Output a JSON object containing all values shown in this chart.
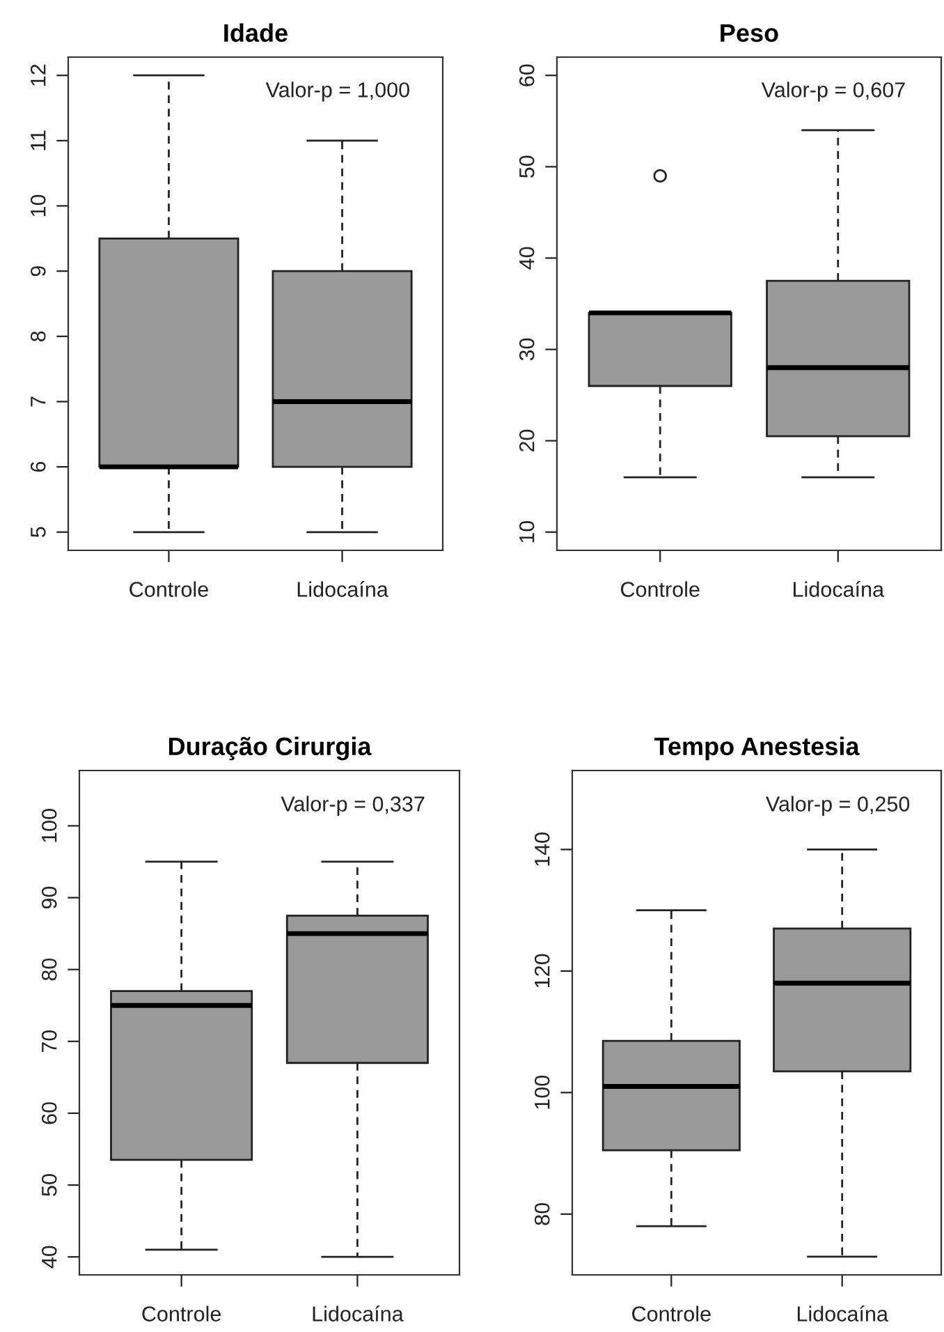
{
  "chart_data": [
    {
      "type": "box",
      "title": "Idade",
      "categories": [
        "Controle",
        "Lidocaína"
      ],
      "color": "#999999",
      "ylim": [
        4.72,
        12.28
      ],
      "yticks": [
        5,
        6,
        7,
        8,
        9,
        10,
        11,
        12
      ],
      "annotations": [
        "Valor-p = 1,000"
      ],
      "boxes": [
        {
          "low": 5,
          "q1": 6,
          "median": 6,
          "q3": 9.5,
          "high": 12
        },
        {
          "low": 5,
          "q1": 6,
          "median": 7,
          "q3": 9,
          "high": 11
        }
      ]
    },
    {
      "type": "box",
      "title": "Peso",
      "categories": [
        "Controle",
        "Lidocaína"
      ],
      "color": "#999999",
      "ylim": [
        8,
        62
      ],
      "yticks": [
        10,
        20,
        30,
        40,
        50,
        60
      ],
      "annotations": [
        "Valor-p = 0,607"
      ],
      "boxes": [
        {
          "low": 16,
          "q1": 26,
          "median": 34,
          "q3": 34,
          "high": 34,
          "outliers": [
            49
          ]
        },
        {
          "low": 16,
          "q1": 20.5,
          "median": 28,
          "q3": 37.5,
          "high": 54
        }
      ]
    },
    {
      "type": "box",
      "title": "Duração Cirurgia",
      "categories": [
        "Controle",
        "Lidocaína"
      ],
      "color": "#999999",
      "ylim": [
        37.5,
        107.7
      ],
      "yticks": [
        40,
        50,
        60,
        70,
        80,
        90,
        100
      ],
      "annotations": [
        "Valor-p = 0,337"
      ],
      "boxes": [
        {
          "low": 41,
          "q1": 53.5,
          "median": 75,
          "q3": 77,
          "high": 95
        },
        {
          "low": 40,
          "q1": 67,
          "median": 85,
          "q3": 87.5,
          "high": 95
        }
      ]
    },
    {
      "type": "box",
      "title": "Tempo Anestesia",
      "categories": [
        "Controle",
        "Lidocaína"
      ],
      "color": "#999999",
      "ylim": [
        70,
        153
      ],
      "yticks": [
        80,
        100,
        120,
        140
      ],
      "annotations": [
        "Valor-p = 0,250"
      ],
      "boxes": [
        {
          "low": 78,
          "q1": 90.5,
          "median": 101,
          "q3": 108.5,
          "high": 130
        },
        {
          "low": 73,
          "q1": 103.5,
          "median": 118,
          "q3": 127,
          "high": 140
        }
      ]
    }
  ]
}
